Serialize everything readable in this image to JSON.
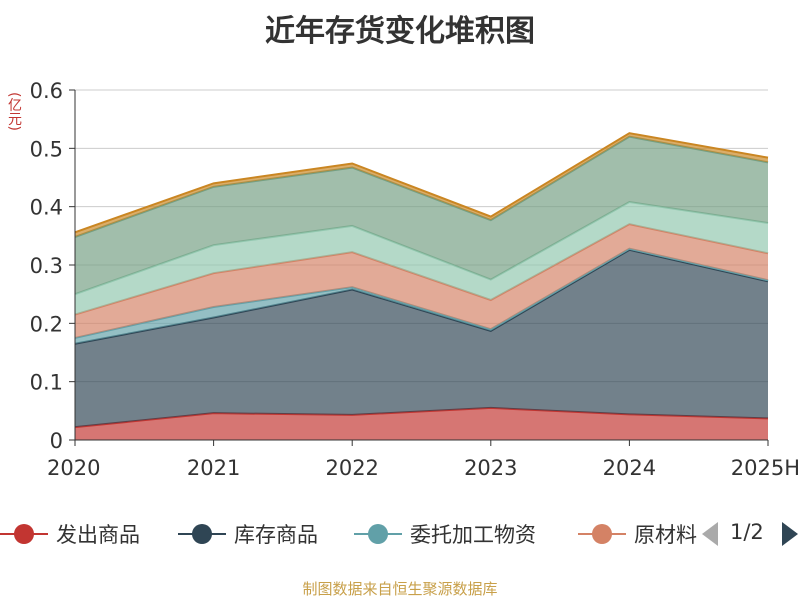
{
  "title": "近年存货变化堆积图",
  "unit_label": "(亿元)",
  "footer": "制图数据来自恒生聚源数据库",
  "legend": {
    "items": [
      {
        "label": "发出商品",
        "color": "#c23531"
      },
      {
        "label": "库存商品",
        "color": "#2f4554"
      },
      {
        "label": "委托加工物资",
        "color": "#61a0a8"
      },
      {
        "label": "原材料",
        "color": "#d48265"
      }
    ],
    "page": "1/2"
  },
  "chart_data": {
    "type": "area",
    "stacked": true,
    "categories": [
      "2020",
      "2021",
      "2022",
      "2023",
      "2024",
      "2025H"
    ],
    "ylim": [
      0,
      0.6
    ],
    "yticks": [
      0,
      0.1,
      0.2,
      0.3,
      0.4,
      0.5,
      0.6
    ],
    "ytick_labels": [
      "0",
      "0.1",
      "0.2",
      "0.3",
      "0.4",
      "0.5",
      "0.6"
    ],
    "series": [
      {
        "name": "发出商品",
        "color": "#c23531",
        "values": [
          0.022,
          0.046,
          0.043,
          0.055,
          0.044,
          0.037
        ]
      },
      {
        "name": "库存商品",
        "color": "#2f4554",
        "values": [
          0.143,
          0.164,
          0.215,
          0.132,
          0.282,
          0.235
        ]
      },
      {
        "name": "委托加工物资",
        "color": "#61a0a8",
        "values": [
          0.01,
          0.018,
          0.004,
          0.003,
          0.002,
          0.002
        ]
      },
      {
        "color": "#d48265",
        "values": [
          0.04,
          0.058,
          0.06,
          0.05,
          0.042,
          0.046
        ]
      },
      {
        "color": "#91c7ae",
        "values": [
          0.035,
          0.048,
          0.045,
          0.035,
          0.038,
          0.052
        ]
      },
      {
        "color": "#749f83",
        "values": [
          0.098,
          0.1,
          0.1,
          0.102,
          0.112,
          0.104
        ]
      },
      {
        "color": "#ca8622",
        "values": [
          0.008,
          0.006,
          0.007,
          0.006,
          0.006,
          0.008
        ]
      }
    ]
  }
}
